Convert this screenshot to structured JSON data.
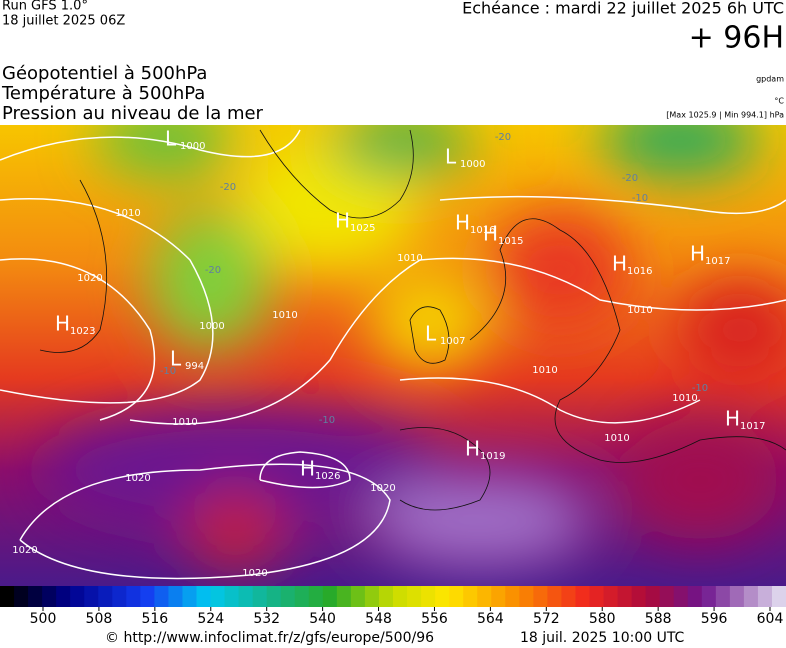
{
  "header": {
    "run": "Run GFS 1.0°",
    "run_date": "18 juillet 2025 06Z",
    "valid": "Echéance : mardi 22 juillet 2025 6h UTC",
    "lead": "+ 96H"
  },
  "fields": [
    "Géopotentiel à 500hPa",
    "Température à 500hPa",
    "Pression au niveau de la mer"
  ],
  "units": {
    "geopotential": "gpdam",
    "temperature": "°C",
    "pressure": "[Max 1025.9 | Min 994.1] hPa"
  },
  "centers": [
    {
      "kind": "L",
      "pressure": 1000
    },
    {
      "kind": "L",
      "pressure": 1000
    },
    {
      "kind": "H",
      "pressure": 1025
    },
    {
      "kind": "H",
      "pressure": 1016
    },
    {
      "kind": "H",
      "pressure": 1015
    },
    {
      "kind": "H",
      "pressure": 1016
    },
    {
      "kind": "H",
      "pressure": 1017
    },
    {
      "kind": "H",
      "pressure": 1023
    },
    {
      "kind": "L",
      "pressure": 994
    },
    {
      "kind": "L",
      "pressure": 1007
    },
    {
      "kind": "H",
      "pressure": 1019
    },
    {
      "kind": "H",
      "pressure": 1026
    },
    {
      "kind": "H",
      "pressure": 1017
    }
  ],
  "isobar_labels": [
    1010,
    1020,
    1000,
    1010,
    1010,
    1010,
    1010,
    1010,
    1010,
    1010,
    1020,
    1020,
    1020,
    1020
  ],
  "temperature_labels": [
    -20,
    -20,
    -20,
    -20,
    -10,
    -10,
    -10,
    -10
  ],
  "colorbar": {
    "ticks": [
      500,
      508,
      516,
      524,
      532,
      540,
      548,
      556,
      564,
      572,
      580,
      588,
      596,
      604
    ]
  },
  "footer": {
    "source": "© http://www.infoclimat.fr/z/gfs/europe/500/96",
    "generated": "18 juil. 2025 10:00 UTC"
  }
}
